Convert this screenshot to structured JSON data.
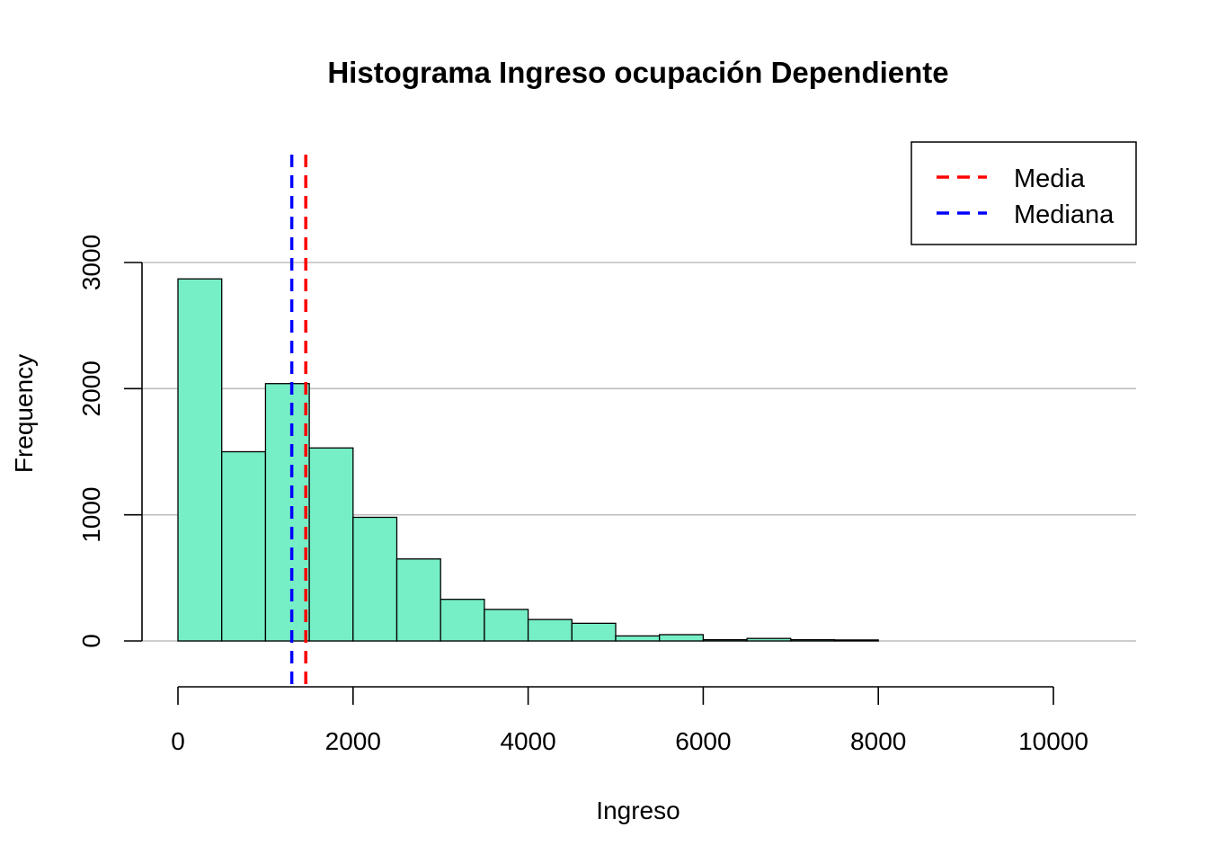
{
  "chart_data": {
    "type": "bar",
    "title": "Histograma Ingreso ocupación Dependiente",
    "xlabel": "Ingreso",
    "ylabel": "Frequency",
    "bin_width": 500,
    "bins_start": [
      0,
      500,
      1000,
      1500,
      2000,
      2500,
      3000,
      3500,
      4000,
      4500,
      5000,
      5500,
      6000,
      6500,
      7000,
      7500
    ],
    "values": [
      2870,
      1500,
      2040,
      1530,
      980,
      650,
      330,
      250,
      170,
      140,
      40,
      50,
      10,
      20,
      10,
      8
    ],
    "xlim": [
      0,
      10000
    ],
    "ylim": [
      0,
      3000
    ],
    "x_ticks": [
      0,
      2000,
      4000,
      6000,
      8000,
      10000
    ],
    "y_ticks": [
      0,
      1000,
      2000,
      3000
    ],
    "grid": true,
    "bar_color": "#76eec6",
    "reference_lines": [
      {
        "name": "Media",
        "value": 1460,
        "color": "#ff0000"
      },
      {
        "name": "Mediana",
        "value": 1300,
        "color": "#0000ff"
      }
    ],
    "legend": {
      "position": "top-right"
    }
  }
}
